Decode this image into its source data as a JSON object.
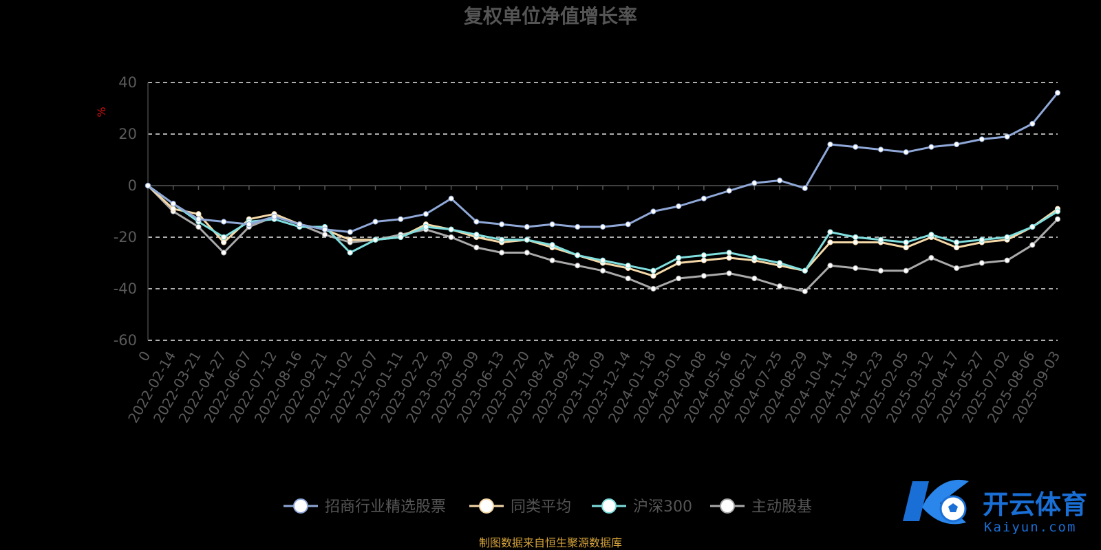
{
  "chart_data": {
    "type": "line",
    "title": "复权单位净值增长率",
    "ylabel": "%",
    "xlabel": "",
    "ylim": [
      -60,
      40
    ],
    "yticks": [
      40,
      20,
      0,
      -20,
      -40,
      -60
    ],
    "grid": true,
    "legend_position": "bottom",
    "x_tick_labels": [
      "0",
      "2022-02-14",
      "2022-03-21",
      "2022-04-27",
      "2022-06-07",
      "2022-07-12",
      "2022-08-16",
      "2022-09-21",
      "2022-11-02",
      "2022-12-07",
      "2023-01-11",
      "2023-02-22",
      "2023-03-29",
      "2023-05-09",
      "2023-06-13",
      "2023-07-20",
      "2023-08-24",
      "2023-09-28",
      "2023-11-09",
      "2023-12-14",
      "2024-01-18",
      "2024-03-01",
      "2024-04-08",
      "2024-05-16",
      "2024-06-21",
      "2024-07-25",
      "2024-08-29",
      "2024-10-14",
      "2024-11-18",
      "2024-12-23",
      "2025-02-05",
      "2025-03-12",
      "2025-04-17",
      "2025-05-27",
      "2025-07-02",
      "2025-08-06",
      "2025-09-03"
    ],
    "series": [
      {
        "name": "招商行业精选股票",
        "color": "#8fa8d8",
        "values": [
          0,
          -7,
          -13,
          -14,
          -15,
          -12,
          -15,
          -17,
          -18,
          -14,
          -13,
          -11,
          -5,
          -14,
          -15,
          -16,
          -15,
          -16,
          -16,
          -15,
          -10,
          -8,
          -5,
          -2,
          1,
          2,
          -1,
          16,
          15,
          14,
          13,
          15,
          16,
          18,
          19,
          24,
          36
        ]
      },
      {
        "name": "同类平均",
        "color": "#f5d9a8",
        "values": [
          0,
          -9,
          -11,
          -22,
          -13,
          -11,
          -15,
          -17,
          -21,
          -21,
          -20,
          -15,
          -17,
          -20,
          -22,
          -21,
          -24,
          -27,
          -30,
          -32,
          -35,
          -30,
          -29,
          -28,
          -29,
          -31,
          -33,
          -22,
          -22,
          -22,
          -24,
          -20,
          -24,
          -22,
          -21,
          -16,
          -9
        ]
      },
      {
        "name": "沪深300",
        "color": "#7fdede",
        "values": [
          0,
          -7,
          -14,
          -20,
          -14,
          -13,
          -16,
          -16,
          -26,
          -21,
          -20,
          -16,
          -17,
          -19,
          -21,
          -21,
          -23,
          -27,
          -29,
          -31,
          -33,
          -28,
          -27,
          -26,
          -28,
          -30,
          -33,
          -18,
          -20,
          -21,
          -22,
          -19,
          -22,
          -21,
          -20,
          -16,
          -10
        ]
      },
      {
        "name": "主动股基",
        "color": "#aaaaaa",
        "values": [
          0,
          -10,
          -16,
          -26,
          -16,
          -12,
          -15,
          -19,
          -22,
          -21,
          -19,
          -17,
          -20,
          -24,
          -26,
          -26,
          -29,
          -31,
          -33,
          -36,
          -40,
          -36,
          -35,
          -34,
          -36,
          -39,
          -41,
          -31,
          -32,
          -33,
          -33,
          -28,
          -32,
          -30,
          -29,
          -23,
          -13
        ]
      }
    ]
  },
  "footer": {
    "source_text": "制图数据来自恒生聚源数据库"
  },
  "watermark": {
    "cn": "开云体育",
    "en": "Kaiyun.com",
    "logo_icon": "k-soccer-logo-icon"
  }
}
